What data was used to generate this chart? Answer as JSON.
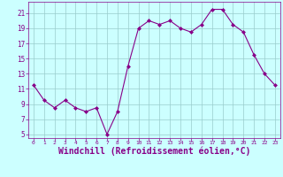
{
  "x": [
    0,
    1,
    2,
    3,
    4,
    5,
    6,
    7,
    8,
    9,
    10,
    11,
    12,
    13,
    14,
    15,
    16,
    17,
    18,
    19,
    20,
    21,
    22,
    23
  ],
  "y": [
    11.5,
    9.5,
    8.5,
    9.5,
    8.5,
    8.0,
    8.5,
    5.0,
    8.0,
    14.0,
    19.0,
    20.0,
    19.5,
    20.0,
    19.0,
    18.5,
    19.5,
    21.5,
    21.5,
    19.5,
    18.5,
    15.5,
    13.0,
    11.5
  ],
  "line_color": "#880088",
  "marker": "D",
  "marker_size": 2,
  "bg_color": "#ccffff",
  "grid_color": "#99cccc",
  "xlabel": "Windchill (Refroidissement éolien,°C)",
  "xlabel_fontsize": 7,
  "tick_color": "#880088",
  "tick_label_color": "#880088",
  "yticks": [
    5,
    7,
    9,
    11,
    13,
    15,
    17,
    19,
    21
  ],
  "xticks": [
    0,
    1,
    2,
    3,
    4,
    5,
    6,
    7,
    8,
    9,
    10,
    11,
    12,
    13,
    14,
    15,
    16,
    17,
    18,
    19,
    20,
    21,
    22,
    23
  ],
  "xlim": [
    -0.5,
    23.5
  ],
  "ylim": [
    4.5,
    22.5
  ]
}
